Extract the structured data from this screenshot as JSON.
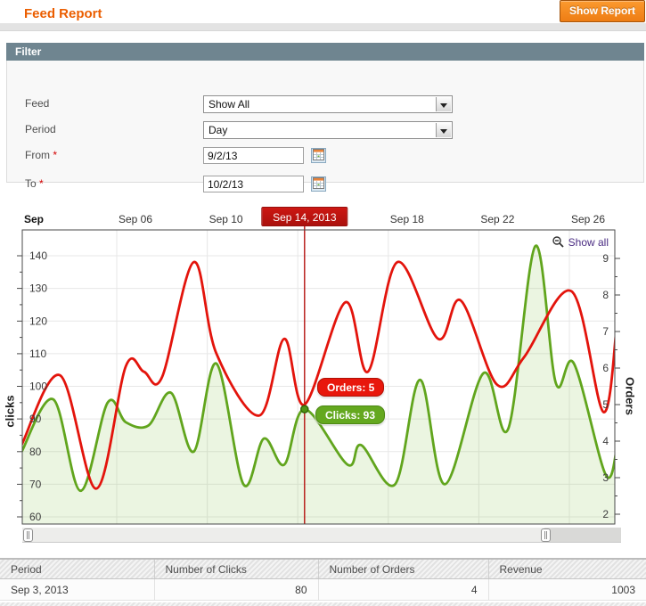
{
  "header": {
    "title": "Feed Report",
    "show_report_label": "Show Report"
  },
  "filter": {
    "heading": "Filter",
    "feed_label": "Feed",
    "feed_value": "Show All",
    "period_label": "Period",
    "period_value": "Day",
    "from_label": "From",
    "to_label": "To",
    "required_marker": "*",
    "from_value": "9/2/13",
    "to_value": "10/2/13"
  },
  "chart_data": {
    "type": "line",
    "x_axis": {
      "unit_label": "Sep",
      "ticks": [
        {
          "day": 6,
          "label": "Sep 06"
        },
        {
          "day": 10,
          "label": "Sep 10"
        },
        {
          "day": 18,
          "label": "Sep 18"
        },
        {
          "day": 22,
          "label": "Sep 22"
        },
        {
          "day": 26,
          "label": "Sep 26"
        }
      ],
      "gridline_days": [
        6,
        10,
        14,
        18,
        22,
        26
      ],
      "selected": {
        "day": 14.3,
        "label": "Sep 14, 2013"
      }
    },
    "y_axis_left": {
      "title": "clicks",
      "min": 60,
      "max": 140,
      "step": 10
    },
    "y_axis_right": {
      "title": "Orders",
      "min": 2,
      "max": 9,
      "step": 1
    },
    "show_all_label": "Show all",
    "grid": true,
    "legend": false,
    "series": [
      {
        "name": "Clicks",
        "axis": "left",
        "color": "#61a51d",
        "area_fill": "rgba(130,190,70,0.16)",
        "points": [
          [
            1.8,
            80
          ],
          [
            3.2,
            96
          ],
          [
            4.4,
            68
          ],
          [
            5.6,
            95
          ],
          [
            6.4,
            89
          ],
          [
            7.4,
            88
          ],
          [
            8.4,
            98
          ],
          [
            9.4,
            80
          ],
          [
            10.4,
            107
          ],
          [
            11.6,
            70
          ],
          [
            12.5,
            84
          ],
          [
            13.4,
            76
          ],
          [
            14.3,
            93
          ],
          [
            16.2,
            76
          ],
          [
            16.8,
            82
          ],
          [
            18.3,
            70
          ],
          [
            19.4,
            102
          ],
          [
            20.5,
            70
          ],
          [
            22.2,
            104
          ],
          [
            23.3,
            87
          ],
          [
            24.5,
            143
          ],
          [
            25.4,
            101
          ],
          [
            26.2,
            107
          ],
          [
            27.6,
            73
          ],
          [
            28.1,
            81
          ]
        ]
      },
      {
        "name": "Orders",
        "axis": "right",
        "color": "#e3140c",
        "points": [
          [
            1.8,
            3.9
          ],
          [
            3.5,
            5.8
          ],
          [
            5.1,
            2.7
          ],
          [
            6.4,
            6.05
          ],
          [
            7.2,
            5.9
          ],
          [
            8.0,
            5.75
          ],
          [
            9.4,
            8.9
          ],
          [
            10.4,
            6.4
          ],
          [
            12.3,
            4.7
          ],
          [
            13.4,
            6.8
          ],
          [
            14.3,
            5.0
          ],
          [
            16.1,
            7.8
          ],
          [
            17.1,
            5.9
          ],
          [
            18.4,
            8.9
          ],
          [
            20.2,
            6.8
          ],
          [
            21.2,
            7.85
          ],
          [
            22.8,
            5.55
          ],
          [
            24.0,
            6.3
          ],
          [
            26.1,
            8.1
          ],
          [
            27.5,
            4.8
          ],
          [
            28.1,
            7.2
          ]
        ]
      }
    ],
    "selected_point": {
      "day": 14.3,
      "clicks": 93,
      "orders": 5
    },
    "tooltips": [
      {
        "text": "Orders: 5",
        "bg": "#e8170c",
        "border": "#b01005"
      },
      {
        "text": "Clicks: 93",
        "bg": "#64a81f",
        "border": "#4c8712"
      }
    ]
  },
  "table": {
    "headers": [
      "Period",
      "Number of Clicks",
      "Number of Orders",
      "Revenue"
    ],
    "rows": [
      [
        "Sep 3, 2013",
        "80",
        "4",
        "1003"
      ]
    ]
  }
}
